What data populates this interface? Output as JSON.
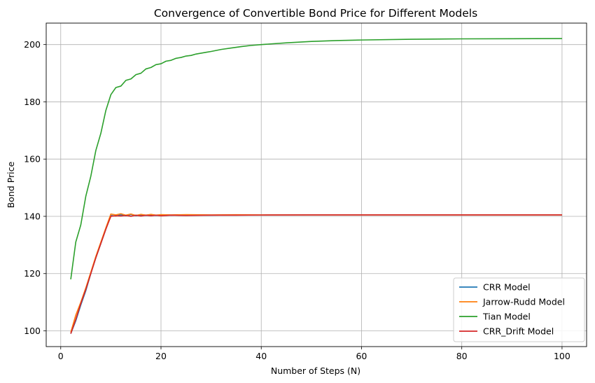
{
  "chart_data": {
    "type": "line",
    "title": "Convergence of Convertible Bond Price for Different Models",
    "xlabel": "Number of Steps (N)",
    "ylabel": "Bond Price",
    "xlim": [
      -2.9,
      104.9
    ],
    "ylim": [
      94.5,
      207.5
    ],
    "xticks": [
      0,
      20,
      40,
      60,
      80,
      100
    ],
    "yticks": [
      100,
      120,
      140,
      160,
      180,
      200
    ],
    "grid": true,
    "legend_position": "lower-right",
    "series": [
      {
        "name": "CRR Model",
        "color": "#1f77b4",
        "x": [
          2,
          3,
          4,
          5,
          6,
          7,
          8,
          9,
          10,
          11,
          12,
          13,
          14,
          15,
          16,
          17,
          18,
          19,
          20,
          22,
          25,
          30,
          35,
          40,
          50,
          60,
          70,
          80,
          90,
          100
        ],
        "y": [
          99.0,
          103.5,
          109.0,
          114.0,
          120.0,
          125.5,
          130.5,
          135.5,
          140.3,
          140.1,
          140.5,
          140.2,
          140.6,
          140.2,
          140.5,
          140.3,
          140.5,
          140.3,
          140.5,
          140.4,
          140.5,
          140.4,
          140.5,
          140.45,
          140.5,
          140.5,
          140.5,
          140.5,
          140.5,
          140.5
        ]
      },
      {
        "name": "Jarrow-Rudd Model",
        "color": "#ff7f0e",
        "x": [
          2,
          3,
          4,
          5,
          6,
          7,
          8,
          9,
          10,
          11,
          12,
          13,
          14,
          15,
          16,
          17,
          18,
          19,
          20,
          22,
          25,
          30,
          35,
          40,
          50,
          60,
          70,
          80,
          90,
          100
        ],
        "y": [
          99.5,
          105.5,
          110.0,
          115.0,
          120.5,
          126.0,
          131.0,
          136.0,
          140.8,
          140.5,
          140.9,
          140.4,
          140.8,
          140.3,
          140.7,
          140.4,
          140.7,
          140.4,
          140.6,
          140.5,
          140.6,
          140.5,
          140.55,
          140.5,
          140.5,
          140.5,
          140.5,
          140.5,
          140.5,
          140.5
        ]
      },
      {
        "name": "Tian Model",
        "color": "#2ca02c",
        "x": [
          2,
          3,
          4,
          5,
          6,
          7,
          8,
          9,
          10,
          11,
          12,
          13,
          14,
          15,
          16,
          17,
          18,
          19,
          20,
          21,
          22,
          23,
          24,
          25,
          26,
          27,
          28,
          29,
          30,
          32,
          34,
          36,
          38,
          40,
          45,
          50,
          55,
          60,
          70,
          80,
          90,
          100
        ],
        "y": [
          118.0,
          131.0,
          137.0,
          147.0,
          154.0,
          163.0,
          169.0,
          177.0,
          182.5,
          185.0,
          185.5,
          187.5,
          188.0,
          189.5,
          190.0,
          191.5,
          192.0,
          193.0,
          193.3,
          194.2,
          194.5,
          195.2,
          195.5,
          196.0,
          196.2,
          196.7,
          197.0,
          197.3,
          197.6,
          198.3,
          198.8,
          199.3,
          199.7,
          200.0,
          200.6,
          201.1,
          201.4,
          201.6,
          201.85,
          202.0,
          202.05,
          202.1
        ]
      },
      {
        "name": "CRR_Drift Model",
        "color": "#d62728",
        "x": [
          2,
          3,
          4,
          5,
          6,
          7,
          8,
          9,
          10,
          11,
          12,
          13,
          14,
          15,
          16,
          17,
          18,
          19,
          20,
          22,
          25,
          30,
          35,
          40,
          50,
          60,
          70,
          80,
          90,
          100
        ],
        "y": [
          99.0,
          104.0,
          109.5,
          114.5,
          120.0,
          125.5,
          130.5,
          135.5,
          140.0,
          140.2,
          140.1,
          140.3,
          140.0,
          140.4,
          140.1,
          140.4,
          140.2,
          140.4,
          140.2,
          140.4,
          140.3,
          140.4,
          140.4,
          140.45,
          140.5,
          140.5,
          140.5,
          140.5,
          140.5,
          140.5
        ]
      }
    ]
  }
}
